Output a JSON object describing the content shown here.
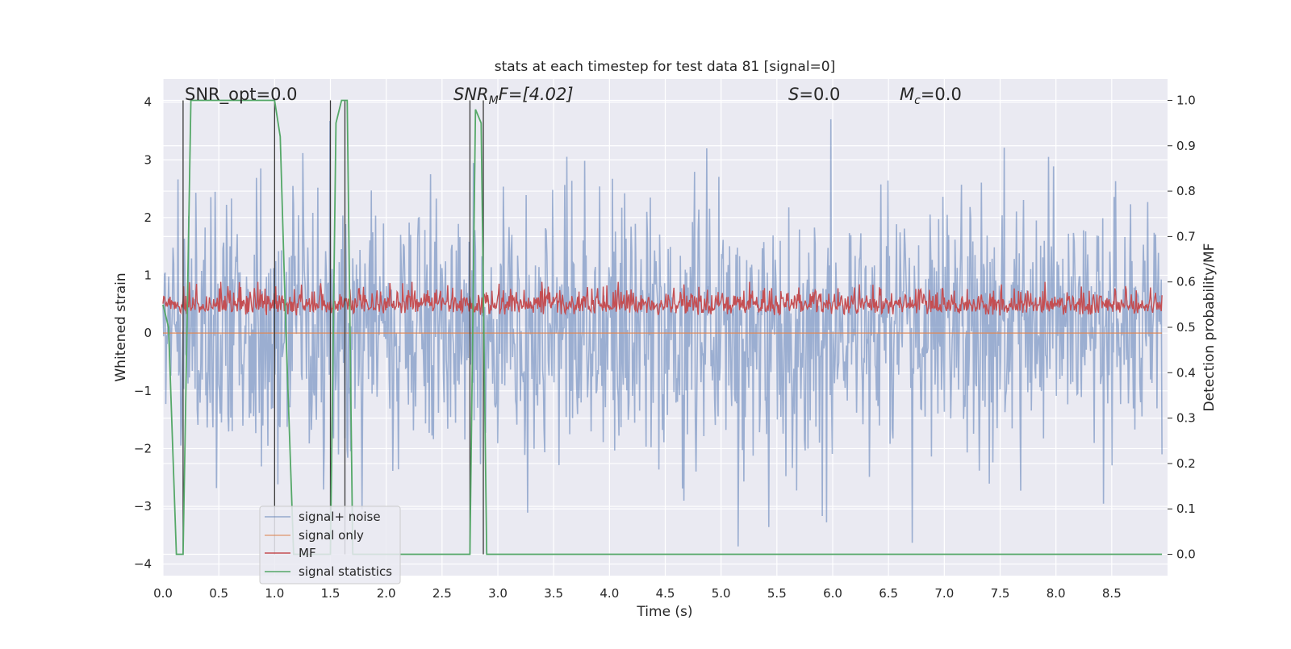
{
  "chart_data": {
    "type": "line",
    "title": "stats at each timestep for test data 81 [signal=0]",
    "xlabel": "Time (s)",
    "ylabel": "Whitened strain",
    "ylabel_right": "Detection probability/MF",
    "xlim": [
      0,
      9.0
    ],
    "ylim": [
      -4.2,
      4.4
    ],
    "ylim_right": [
      -0.047,
      1.047
    ],
    "x_ticks": [
      "0.0",
      "0.5",
      "1.0",
      "1.5",
      "2.0",
      "2.5",
      "3.0",
      "3.5",
      "4.0",
      "4.5",
      "5.0",
      "5.5",
      "6.0",
      "6.5",
      "7.0",
      "7.5",
      "8.0",
      "8.5"
    ],
    "y_ticks": [
      "4",
      "3",
      "2",
      "1",
      "0",
      "−1",
      "−2",
      "−3",
      "−4"
    ],
    "y_right_ticks": [
      "1.0",
      "0.9",
      "0.8",
      "0.7",
      "0.6",
      "0.5",
      "0.4",
      "0.3",
      "0.2",
      "0.1",
      "0.0"
    ],
    "grid": true,
    "legend_position": "lower-left",
    "annotations": {
      "snr_opt": "SNR_opt=0.0",
      "snr_mf_main": "SNR",
      "snr_mf_sub": "M",
      "snr_mf_rest": "F=[4.02]",
      "s_var": "S",
      "s_rest": "=0.0",
      "mc_var": "M",
      "mc_sub": "c",
      "mc_rest": "=0.0"
    },
    "series": [
      {
        "name": "signal+ noise",
        "color": "#4c72b0",
        "description_value_range": [
          -3.7,
          4.0
        ],
        "axis": "left"
      },
      {
        "name": "signal only",
        "color": "#dd8452",
        "values_constant": 0.0,
        "axis": "left"
      },
      {
        "name": "MF",
        "color": "#c44e52",
        "axis": "right",
        "typical_range": [
          0.5,
          0.6
        ]
      },
      {
        "name": "signal statistics",
        "color": "#55a868",
        "axis": "right",
        "x": [
          0.0,
          0.05,
          0.12,
          0.18,
          0.25,
          0.3,
          0.5,
          1.0,
          1.05,
          1.1,
          1.17,
          1.5,
          1.55,
          1.6,
          1.65,
          1.7,
          2.0,
          2.75,
          2.8,
          2.85,
          2.9,
          2.95,
          8.95
        ],
        "values": [
          0.55,
          0.5,
          0.0,
          0.0,
          1.0,
          1.0,
          1.0,
          1.0,
          0.92,
          0.5,
          0.0,
          0.0,
          0.95,
          1.0,
          1.0,
          0.0,
          0.0,
          0.0,
          0.98,
          0.95,
          0.0,
          0.0,
          0.0
        ]
      }
    ],
    "vertical_lines_x": [
      0.18,
      1.0,
      1.5,
      1.63,
      2.75,
      2.87
    ],
    "colors": {
      "background": "#eaeaf2",
      "grid": "#ffffff",
      "noise": "#4c72b0",
      "signal_only": "#dd8452",
      "mf": "#c44e52",
      "stats": "#55a868",
      "vline": "#3a3a3a"
    }
  }
}
